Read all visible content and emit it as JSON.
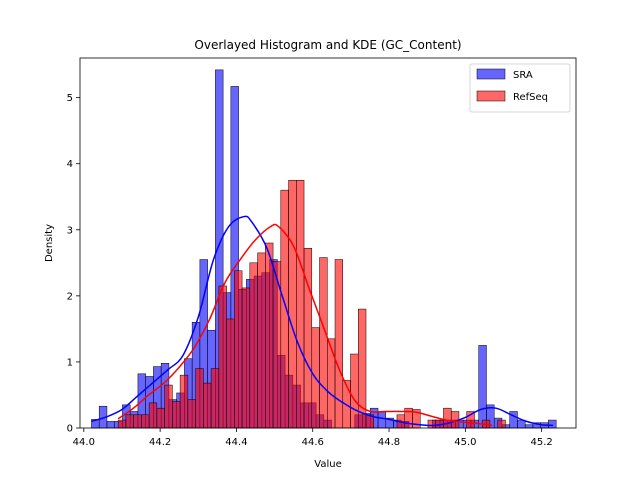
{
  "chart_data": {
    "type": "bar",
    "title": "Overlayed Histogram and KDE (GC_Content)",
    "xlabel": "Value",
    "ylabel": "Density",
    "xlim": [
      43.99,
      45.29
    ],
    "ylim": [
      0,
      5.6
    ],
    "xticks": [
      "44.0",
      "44.2",
      "44.4",
      "44.6",
      "44.8",
      "45.0",
      "45.2"
    ],
    "xtick_values": [
      44.0,
      44.2,
      44.4,
      44.6,
      44.8,
      45.0,
      45.2
    ],
    "yticks": [
      "0",
      "1",
      "2",
      "3",
      "4",
      "5"
    ],
    "ytick_values": [
      0,
      1,
      2,
      3,
      4,
      5
    ],
    "legend_position": "upper-right",
    "series": [
      {
        "name": "SRA",
        "color": "#0000ff",
        "bin_start": 44.02,
        "bin_width": 0.0203,
        "values": [
          0.13,
          0.33,
          0.1,
          0.1,
          0.35,
          0.25,
          0.82,
          0.78,
          0.93,
          0.98,
          0.43,
          0.53,
          1.05,
          1.6,
          2.55,
          1.48,
          5.42,
          2.05,
          5.17,
          2.1,
          2.25,
          2.3,
          2.35,
          2.55,
          1.1,
          0.8,
          0.65,
          0.38,
          0.38,
          0.2,
          0.12,
          0.0,
          0.0,
          0.0,
          0.2,
          0.22,
          0.3,
          0.25,
          0.15,
          0.12,
          0.1,
          0.0,
          0.0,
          0.0,
          0.12,
          0.12,
          0.12,
          0.12,
          0.12,
          0.12,
          1.25,
          0.35,
          0.15,
          0.05,
          0.25,
          0.12,
          0.05,
          0.08,
          0.08,
          0.12
        ]
      },
      {
        "name": "RefSeq",
        "color": "#ff0000",
        "bin_start": 44.09,
        "bin_width": 0.0203,
        "values": [
          0.12,
          0.2,
          0.2,
          0.2,
          0.38,
          0.3,
          0.65,
          0.4,
          0.8,
          0.43,
          0.9,
          0.68,
          0.9,
          2.15,
          1.65,
          2.38,
          2.12,
          2.5,
          2.65,
          2.8,
          2.52,
          3.6,
          3.75,
          3.75,
          2.72,
          1.52,
          2.58,
          1.35,
          2.55,
          0.72,
          1.12,
          1.8,
          0.2,
          0.0,
          0.0,
          0.0,
          0.2,
          0.3,
          0.28,
          0.0,
          0.12,
          0.12,
          0.3,
          0.25,
          0.0,
          0.25,
          0.0,
          0.12,
          0.0,
          0.12
        ]
      }
    ],
    "kde": [
      {
        "name": "SRA",
        "color": "#0000ff",
        "x": [
          44.02,
          44.06,
          44.1,
          44.14,
          44.18,
          44.22,
          44.26,
          44.3,
          44.34,
          44.38,
          44.42,
          44.44,
          44.48,
          44.52,
          44.56,
          44.6,
          44.64,
          44.68,
          44.72,
          44.76,
          44.8,
          44.84,
          44.88,
          44.92,
          44.96,
          45.0,
          45.04,
          45.08,
          45.12,
          45.16,
          45.2,
          45.23
        ],
        "y": [
          0.1,
          0.17,
          0.28,
          0.48,
          0.68,
          0.88,
          1.1,
          1.68,
          2.55,
          3.05,
          3.2,
          3.12,
          2.72,
          2.0,
          1.3,
          0.82,
          0.55,
          0.38,
          0.25,
          0.17,
          0.13,
          0.08,
          0.05,
          0.04,
          0.08,
          0.16,
          0.28,
          0.3,
          0.2,
          0.1,
          0.05,
          0.04
        ]
      },
      {
        "name": "RefSeq",
        "color": "#ff0000",
        "x": [
          44.09,
          44.13,
          44.17,
          44.21,
          44.25,
          44.29,
          44.33,
          44.37,
          44.41,
          44.45,
          44.49,
          44.51,
          44.55,
          44.59,
          44.63,
          44.67,
          44.71,
          44.75,
          44.79,
          44.83,
          44.87,
          44.91,
          44.95,
          44.99,
          45.03,
          45.07
        ],
        "y": [
          0.14,
          0.3,
          0.5,
          0.68,
          0.92,
          1.22,
          1.65,
          2.2,
          2.55,
          2.85,
          3.05,
          3.05,
          2.75,
          2.12,
          1.5,
          0.88,
          0.42,
          0.25,
          0.25,
          0.25,
          0.24,
          0.18,
          0.12,
          0.09,
          0.07,
          0.04
        ]
      }
    ]
  }
}
